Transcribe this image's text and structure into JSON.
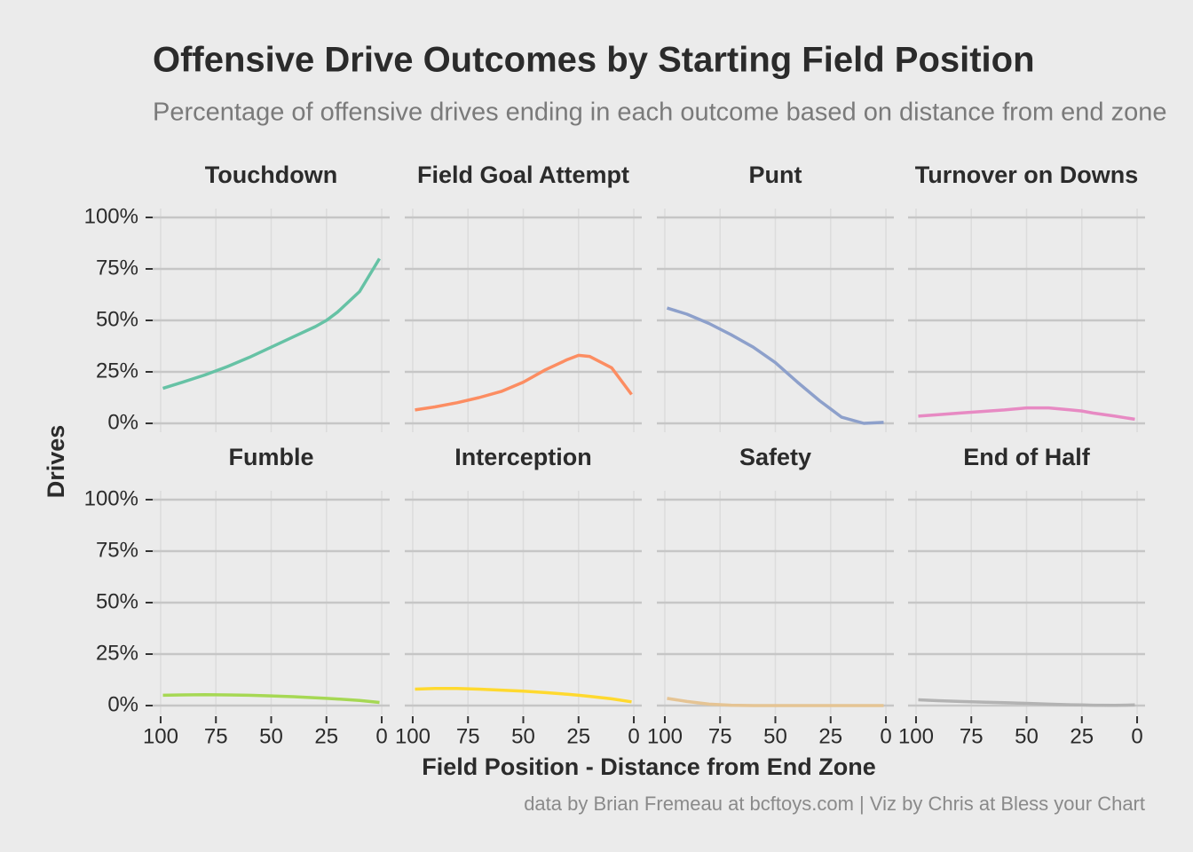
{
  "title": "Offensive Drive Outcomes by Starting Field Position",
  "subtitle": "Percentage of offensive drives ending in each outcome based on distance from end zone",
  "xlabel": "Field Position - Distance from End Zone",
  "ylabel": "Drives",
  "caption": "data by Brian Fremeau at bcftoys.com | Viz by Chris at Bless your Chart",
  "xlim": [
    103.6,
    -3.6
  ],
  "ylim": [
    -4.3,
    104.3
  ],
  "xticks": [
    100,
    75,
    50,
    25,
    0
  ],
  "yticks": [
    {
      "value": 0,
      "label": "0%"
    },
    {
      "value": 25,
      "label": "25%"
    },
    {
      "value": 50,
      "label": "50%"
    },
    {
      "value": 75,
      "label": "75%"
    },
    {
      "value": 100,
      "label": "100%"
    }
  ],
  "grid": true,
  "chart_data": [
    {
      "type": "line",
      "title": "Touchdown",
      "color": "#66c2a5",
      "x": [
        99,
        90,
        80,
        70,
        60,
        50,
        40,
        30,
        25,
        20,
        10,
        1
      ],
      "values": [
        17,
        20,
        23.5,
        27.5,
        32,
        37,
        42,
        47,
        50,
        54,
        64,
        80
      ]
    },
    {
      "type": "line",
      "title": "Field Goal Attempt",
      "color": "#fc8d62",
      "x": [
        99,
        90,
        80,
        70,
        60,
        50,
        40,
        30,
        25,
        20,
        10,
        1
      ],
      "values": [
        6.5,
        8,
        10,
        12.5,
        15.5,
        20,
        26,
        31,
        33,
        32.5,
        27,
        14
      ]
    },
    {
      "type": "line",
      "title": "Punt",
      "color": "#8da0cb",
      "x": [
        99,
        90,
        80,
        70,
        60,
        50,
        40,
        30,
        25,
        20,
        10,
        1
      ],
      "values": [
        56,
        53,
        48.5,
        43,
        37,
        29.5,
        20,
        11,
        7,
        3,
        0,
        0.5
      ]
    },
    {
      "type": "line",
      "title": "Turnover on Downs",
      "color": "#e78ac3",
      "x": [
        99,
        90,
        80,
        70,
        60,
        50,
        40,
        30,
        25,
        20,
        10,
        1
      ],
      "values": [
        3.5,
        4.2,
        5,
        5.8,
        6.5,
        7.5,
        7.5,
        6.5,
        6,
        5,
        3.5,
        2
      ]
    },
    {
      "type": "line",
      "title": "Fumble",
      "color": "#a6d854",
      "x": [
        99,
        90,
        80,
        70,
        60,
        50,
        40,
        30,
        25,
        20,
        10,
        1
      ],
      "values": [
        5,
        5.2,
        5.3,
        5.2,
        5,
        4.7,
        4.3,
        3.8,
        3.5,
        3.2,
        2.5,
        1.5
      ]
    },
    {
      "type": "line",
      "title": "Interception",
      "color": "#ffd92f",
      "x": [
        99,
        90,
        80,
        70,
        60,
        50,
        40,
        30,
        25,
        20,
        10,
        1
      ],
      "values": [
        8,
        8.3,
        8.3,
        8,
        7.5,
        7,
        6.3,
        5.5,
        5,
        4.5,
        3.3,
        1.8
      ]
    },
    {
      "type": "line",
      "title": "Safety",
      "color": "#e5c494",
      "x": [
        99,
        90,
        80,
        70,
        60,
        50,
        40,
        30,
        25,
        20,
        10,
        1
      ],
      "values": [
        3.5,
        2,
        0.7,
        0.2,
        0,
        0,
        0,
        0,
        0,
        0,
        0,
        0
      ]
    },
    {
      "type": "line",
      "title": "End of Half",
      "color": "#b3b3b3",
      "x": [
        99,
        90,
        80,
        70,
        60,
        50,
        40,
        30,
        25,
        20,
        10,
        1
      ],
      "values": [
        2.8,
        2.4,
        2,
        1.7,
        1.4,
        1.1,
        0.7,
        0.4,
        0.3,
        0.2,
        0.1,
        0.3
      ]
    }
  ]
}
